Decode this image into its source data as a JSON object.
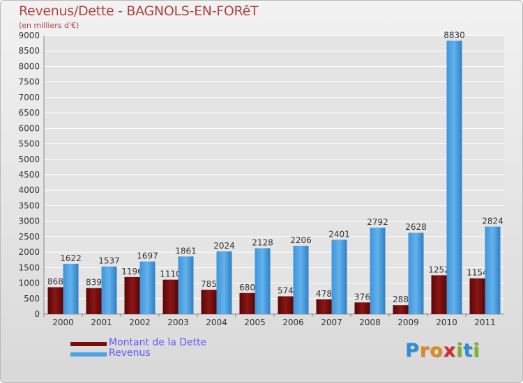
{
  "chart_data": {
    "type": "bar",
    "title": "Revenus/Dette - BAGNOLS-EN-FORêT",
    "subtitle": "(en milliers d'€)",
    "categories": [
      "2000",
      "2001",
      "2002",
      "2003",
      "2004",
      "2005",
      "2006",
      "2007",
      "2008",
      "2009",
      "2010",
      "2011"
    ],
    "series": [
      {
        "name": "Montant de la Dette",
        "color": "#7a0c0c",
        "values": [
          868,
          839,
          1196,
          1110,
          785,
          680,
          574,
          478,
          376,
          288,
          1252,
          1154
        ]
      },
      {
        "name": "Revenus",
        "color": "#4aa3e6",
        "values": [
          1622,
          1537,
          1697,
          1861,
          2024,
          2128,
          2206,
          2401,
          2792,
          2628,
          8830,
          2824
        ]
      }
    ],
    "ylim": [
      0,
      9000
    ],
    "yticks": [
      0,
      500,
      1000,
      1500,
      2000,
      2500,
      3000,
      3500,
      4000,
      4500,
      5000,
      5500,
      6000,
      6500,
      7000,
      7500,
      8000,
      8500,
      9000
    ],
    "grid": true,
    "legend_position": "bottom-left"
  },
  "logo": {
    "letters": [
      "P",
      "r",
      "o",
      "x",
      "i",
      "t",
      "i"
    ],
    "colors": [
      "#2a8fd8",
      "#e38a1e",
      "#e38a1e",
      "#d42a2a",
      "#7bb526",
      "#2a8fd8",
      "#7bb526"
    ]
  }
}
